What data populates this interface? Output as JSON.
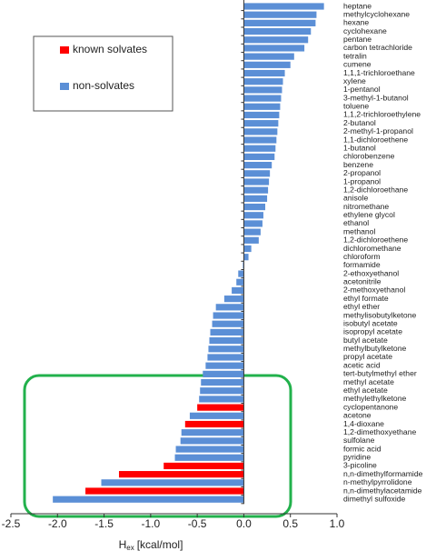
{
  "chart_data": {
    "type": "barh",
    "x_label": {
      "main": "H",
      "sub": "ex",
      "unit": "[kcal/mol]"
    },
    "categories": [
      "heptane",
      "methylcyclohexane",
      "hexane",
      "cyclohexane",
      "pentane",
      "carbon tetrachloride",
      "tetralin",
      "cumene",
      "1,1,1-trichloroethane",
      "xylene",
      "1-pentanol",
      "3-methyl-1-butanol",
      "toluene",
      "1,1,2-trichloroethylene",
      "2-butanol",
      "2-methyl-1-propanol",
      "1,1-dichloroethene",
      "1-butanol",
      "chlorobenzene",
      "benzene",
      "2-propanol",
      "1-propanol",
      "1,2-dichloroethane",
      "anisole",
      "nitromethane",
      "ethylene glycol",
      "ethanol",
      "methanol",
      "1,2-dichloroethene",
      "dichloromethane",
      "chloroform",
      "formamide",
      "2-ethoxyethanol",
      "acetonitrile",
      "2-methoxyethanol",
      "ethyl formate",
      "ethyl ether",
      "methylisobutylketone",
      "isobutyl acetate",
      "isopropyl acetate",
      "butyl acetate",
      "methylbutylketone",
      "propyl acetate",
      "acetic acid",
      "tert-butylmethyl ether",
      "methyl acetate",
      "ethyl acetate",
      "methylethylketone",
      "cyclopentanone",
      "acetone",
      "1,4-dioxane",
      "1,2-dimethoxyethane",
      "sulfolane",
      "formic acid",
      "pyridine",
      "3-picoline",
      "n,n-dimethylformamide",
      "n-methylpyrrolidone",
      "n,n-dimethylacetamide",
      "dimethyl sulfoxide"
    ],
    "series": [
      {
        "name": "known solvates",
        "color": "#ff0000",
        "values": [
          null,
          null,
          null,
          null,
          null,
          null,
          null,
          null,
          null,
          null,
          null,
          null,
          null,
          null,
          null,
          null,
          null,
          null,
          null,
          null,
          null,
          null,
          null,
          null,
          null,
          null,
          null,
          null,
          null,
          null,
          null,
          null,
          null,
          null,
          null,
          null,
          null,
          null,
          null,
          null,
          null,
          null,
          null,
          null,
          null,
          null,
          null,
          null,
          -0.5,
          null,
          -0.63,
          null,
          null,
          null,
          null,
          -0.86,
          -1.34,
          null,
          -1.7,
          null
        ]
      },
      {
        "name": "non-solvates",
        "color": "#5b8fd6",
        "values": [
          0.86,
          0.78,
          0.77,
          0.72,
          0.69,
          0.65,
          0.54,
          0.5,
          0.44,
          0.42,
          0.41,
          0.4,
          0.39,
          0.38,
          0.37,
          0.36,
          0.35,
          0.34,
          0.33,
          0.3,
          0.28,
          0.27,
          0.26,
          0.25,
          0.23,
          0.21,
          0.2,
          0.18,
          0.16,
          0.08,
          0.05,
          -0.01,
          -0.06,
          -0.08,
          -0.13,
          -0.21,
          -0.3,
          -0.33,
          -0.34,
          -0.36,
          -0.37,
          -0.38,
          -0.39,
          -0.41,
          -0.44,
          -0.46,
          -0.47,
          -0.48,
          null,
          -0.58,
          null,
          -0.67,
          -0.68,
          -0.73,
          -0.74,
          null,
          null,
          -1.53,
          null,
          -2.05
        ]
      }
    ],
    "xlim": [
      -2.5,
      1.0
    ],
    "xticks": [
      -2.5,
      {
        "value": -2.0,
        "label": "-2.0"
      },
      -1.5,
      {
        "value": -1.0,
        "label": "-1.0"
      },
      -0.5,
      {
        "value": 0.0,
        "label": "0.0"
      },
      0.5,
      {
        "value": 1.0,
        "label": "1.0"
      }
    ]
  }
}
